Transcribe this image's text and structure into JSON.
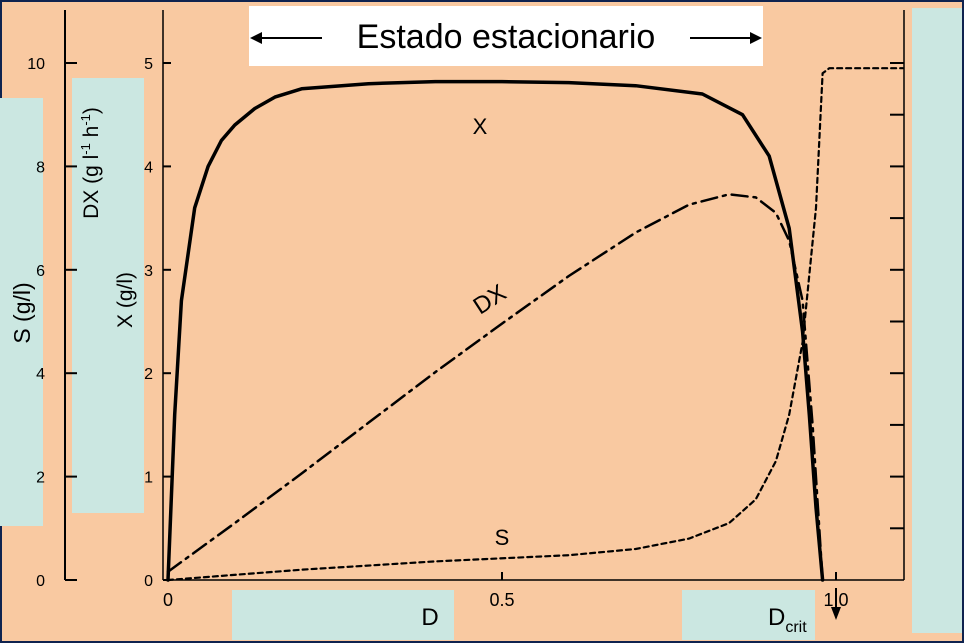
{
  "chart_data": {
    "type": "line",
    "title": "Estado estacionario",
    "xlabel": "D",
    "xlim": [
      0,
      1.1
    ],
    "x_ticks": [
      "0",
      "0.5",
      "1.0"
    ],
    "x_tick_values": [
      0,
      0.5,
      1.0
    ],
    "critical_marker": {
      "label": "D",
      "subscript": "crit",
      "x": 0.98
    },
    "axes": [
      {
        "id": "S",
        "label": "S (g/l)",
        "ylim": [
          0,
          10.5
        ],
        "ticks": [
          "0",
          "2",
          "4",
          "6",
          "8",
          "10"
        ],
        "tick_values": [
          0,
          2,
          4,
          6,
          8,
          10
        ]
      },
      {
        "id": "DX",
        "label": "DX (g l-1 h-1)",
        "label_parts": [
          "DX (g l",
          "-1",
          " h",
          "-1",
          ")"
        ]
      },
      {
        "id": "X",
        "label": "X (g/l)",
        "ylim": [
          0,
          5.25
        ],
        "ticks": [
          "0",
          "1",
          "2",
          "3",
          "4",
          "5"
        ],
        "tick_values": [
          0,
          1,
          2,
          3,
          4,
          5
        ]
      }
    ],
    "series": [
      {
        "name": "X",
        "axis": "X",
        "style": "solid",
        "x": [
          0,
          0.01,
          0.02,
          0.04,
          0.06,
          0.08,
          0.1,
          0.13,
          0.16,
          0.2,
          0.3,
          0.4,
          0.5,
          0.6,
          0.7,
          0.8,
          0.86,
          0.9,
          0.93,
          0.95,
          0.96,
          0.97,
          0.98
        ],
        "y": [
          0,
          1.6,
          2.7,
          3.6,
          4.0,
          4.25,
          4.4,
          4.56,
          4.67,
          4.75,
          4.8,
          4.82,
          4.82,
          4.81,
          4.78,
          4.7,
          4.5,
          4.1,
          3.4,
          2.4,
          1.6,
          0.7,
          0
        ]
      },
      {
        "name": "DX",
        "axis": "X",
        "style": "dashdot",
        "x": [
          0,
          0.1,
          0.2,
          0.3,
          0.4,
          0.5,
          0.6,
          0.7,
          0.78,
          0.84,
          0.88,
          0.91,
          0.93,
          0.95,
          0.965,
          0.98
        ],
        "y": [
          0.08,
          0.55,
          1.03,
          1.52,
          2.01,
          2.48,
          2.94,
          3.36,
          3.63,
          3.73,
          3.7,
          3.55,
          3.28,
          2.7,
          1.5,
          0
        ]
      },
      {
        "name": "S",
        "axis": "X",
        "style": "dotted",
        "x": [
          0,
          0.2,
          0.4,
          0.6,
          0.7,
          0.78,
          0.84,
          0.88,
          0.91,
          0.93,
          0.95,
          0.97,
          0.98,
          0.99,
          1.1
        ],
        "y": [
          0,
          0.1,
          0.18,
          0.24,
          0.3,
          0.4,
          0.55,
          0.78,
          1.15,
          1.6,
          2.3,
          3.6,
          4.9,
          4.95,
          4.95
        ]
      }
    ],
    "series_labels": [
      "X",
      "DX",
      "S"
    ]
  },
  "colors": {
    "background": "#f9c9a1",
    "panel": "#cbe7e1",
    "frame": "#0f234f",
    "ink": "#000000",
    "title_box": "#ffffff"
  }
}
